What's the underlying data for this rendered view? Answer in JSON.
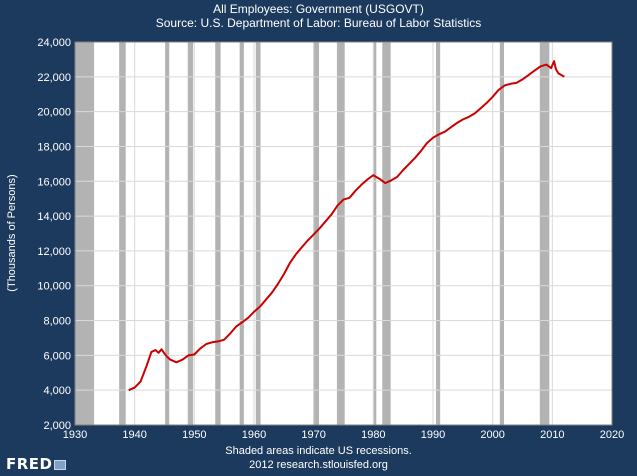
{
  "chart_data": {
    "type": "line",
    "title": "All Employees: Government (USGOVT)",
    "subtitle": "Source: U.S. Department of Labor: Bureau of Labor Statistics",
    "ylabel": "(Thousands of Persons)",
    "xlabel": "",
    "xlim": [
      1930,
      2020
    ],
    "ylim": [
      2000,
      24000
    ],
    "x_ticks": [
      "1930",
      "1940",
      "1950",
      "1960",
      "1970",
      "1980",
      "1990",
      "2000",
      "2010",
      "2020"
    ],
    "y_ticks": [
      "2,000",
      "4,000",
      "6,000",
      "8,000",
      "10,000",
      "12,000",
      "14,000",
      "16,000",
      "18,000",
      "20,000",
      "22,000",
      "24,000"
    ],
    "grid": true,
    "line_color": "#cc0000",
    "recession_color": "#b3b3b3",
    "recessions": [
      [
        1929.7,
        1933.2
      ],
      [
        1937.4,
        1938.5
      ],
      [
        1945.1,
        1945.8
      ],
      [
        1948.9,
        1949.8
      ],
      [
        1953.5,
        1954.4
      ],
      [
        1957.6,
        1958.3
      ],
      [
        1960.3,
        1961.1
      ],
      [
        1969.9,
        1970.9
      ],
      [
        1973.9,
        1975.2
      ],
      [
        1980.0,
        1980.5
      ],
      [
        1981.5,
        1982.9
      ],
      [
        1990.5,
        1991.2
      ],
      [
        2001.2,
        2001.9
      ],
      [
        2007.9,
        2009.5
      ]
    ],
    "series": [
      {
        "x": [
          1939,
          1940,
          1941,
          1942,
          1942.8,
          1943.5,
          1944,
          1944.5,
          1945,
          1945.5,
          1946,
          1947,
          1948,
          1949,
          1950,
          1951,
          1952,
          1953,
          1954,
          1955,
          1956,
          1957,
          1958,
          1959,
          1960,
          1961,
          1962,
          1963,
          1964,
          1965,
          1966,
          1967,
          1968,
          1969,
          1970,
          1971,
          1972,
          1973,
          1974,
          1975,
          1976,
          1977,
          1978,
          1979,
          1980,
          1981,
          1982,
          1983,
          1984,
          1985,
          1986,
          1987,
          1988,
          1989,
          1990,
          1991,
          1992,
          1993,
          1994,
          1995,
          1996,
          1997,
          1998,
          1999,
          2000,
          2001,
          2002,
          2003,
          2004,
          2005,
          2006,
          2007,
          2008,
          2009,
          2009.8,
          2010.3,
          2010.6,
          2011,
          2012
        ],
        "values": [
          4000,
          4150,
          4500,
          5400,
          6200,
          6300,
          6150,
          6350,
          6100,
          5900,
          5750,
          5600,
          5750,
          6000,
          6050,
          6400,
          6650,
          6750,
          6800,
          6900,
          7250,
          7650,
          7900,
          8150,
          8500,
          8800,
          9200,
          9600,
          10100,
          10650,
          11300,
          11800,
          12200,
          12600,
          12950,
          13300,
          13700,
          14100,
          14600,
          14950,
          15050,
          15450,
          15800,
          16100,
          16350,
          16150,
          15900,
          16050,
          16250,
          16650,
          17000,
          17350,
          17750,
          18200,
          18500,
          18700,
          18850,
          19100,
          19350,
          19550,
          19700,
          19900,
          20200,
          20500,
          20850,
          21250,
          21500,
          21600,
          21650,
          21850,
          22100,
          22350,
          22600,
          22700,
          22500,
          22900,
          22450,
          22200,
          22000
        ]
      }
    ]
  },
  "footer": {
    "note": "Shaded areas indicate US recessions.",
    "source_url": "2012 research.stlouisfed.org",
    "logo_text": "FRED"
  }
}
